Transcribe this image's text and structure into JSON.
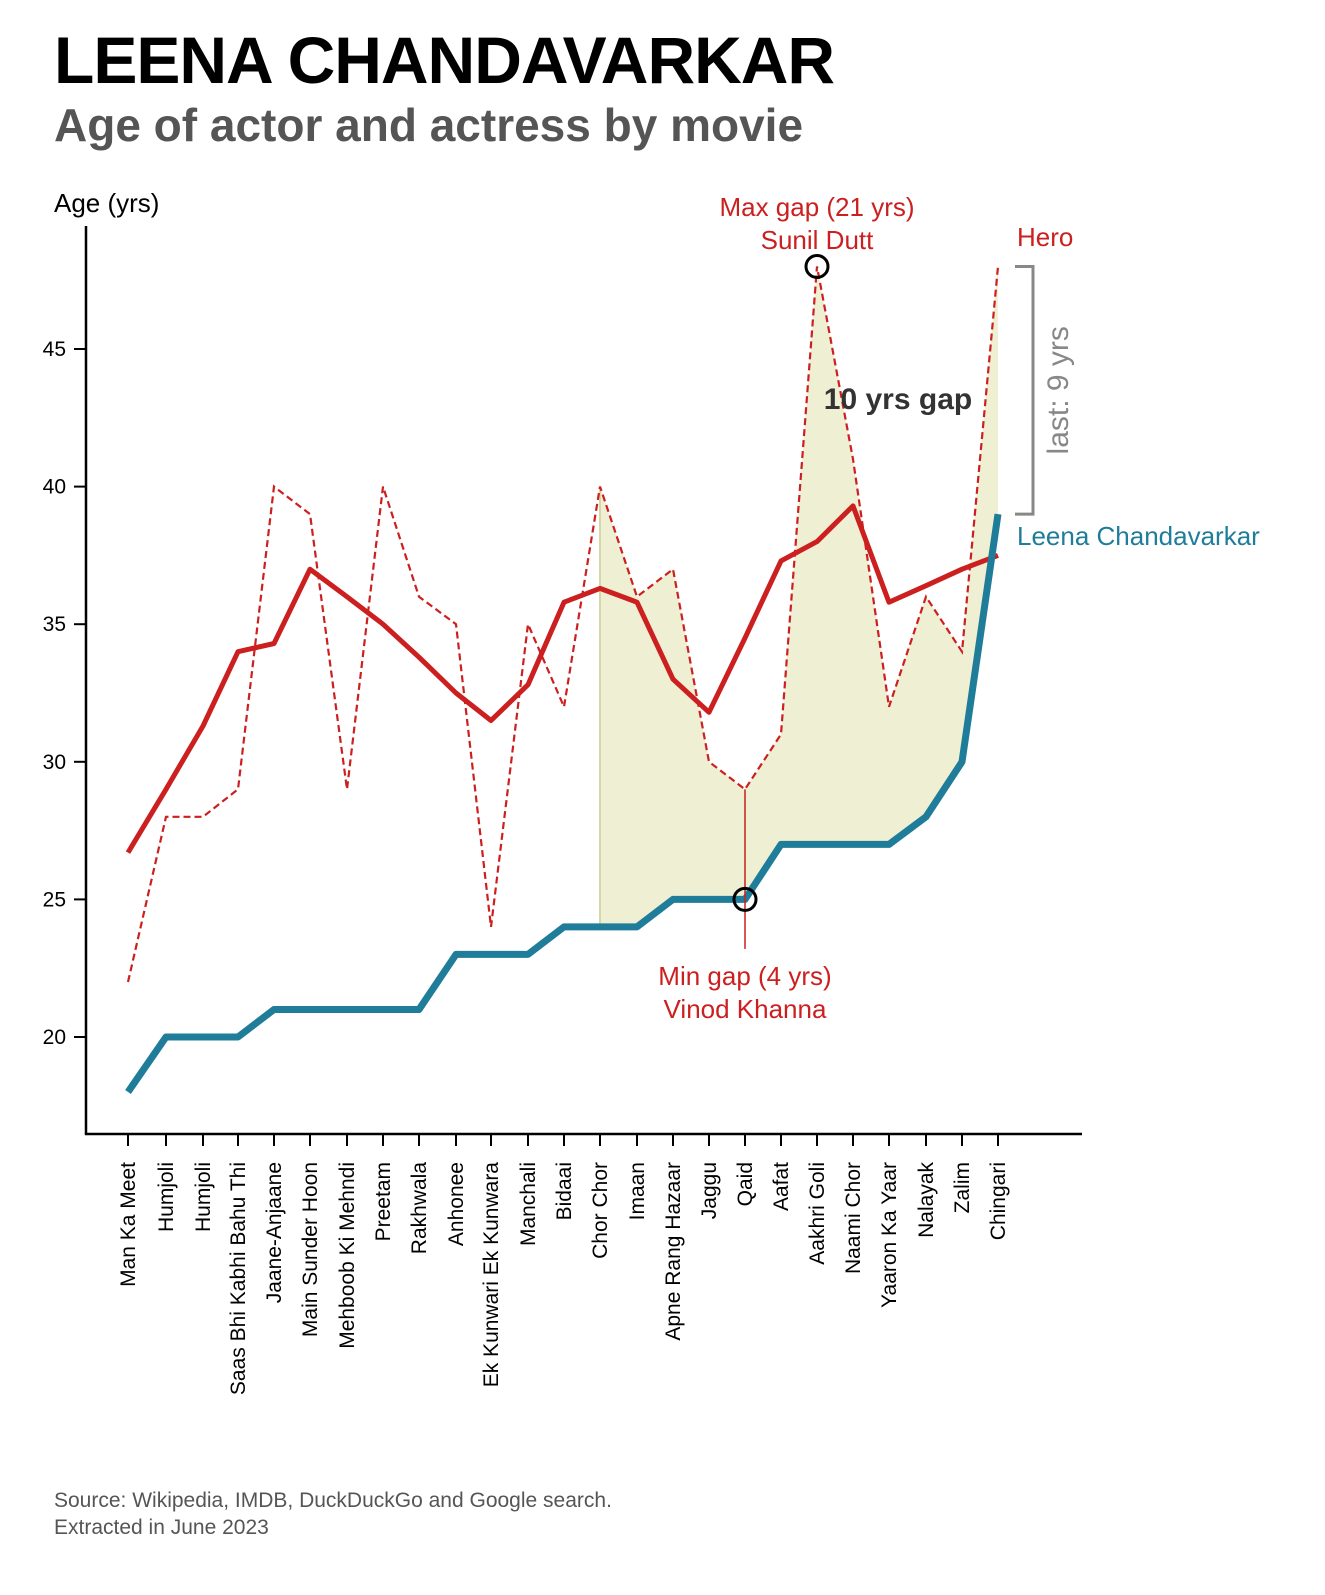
{
  "title": "LEENA CHANDAVARKAR",
  "subtitle": "Age of actor and actress by movie",
  "source_line1": "Source: Wikipedia, IMDB, DuckDuckGo and Google search.",
  "source_line2": "Extracted in June 2023",
  "colors": {
    "actress": "#1f7d9a",
    "actor": "#cc1f1f",
    "gap_fill": "#efefd3",
    "bracket": "#888888",
    "annotation_dark": "#333333"
  },
  "chart_data": {
    "type": "line",
    "ylabel": "Age (yrs)",
    "yticks": [
      20,
      25,
      30,
      35,
      40,
      45
    ],
    "ylim": [
      17.6,
      49.6
    ],
    "categories": [
      "Man Ka Meet",
      "Humjoli",
      "Humjoli",
      "Saas Bhi Kabhi Bahu Thi",
      "Jaane-Anjaane",
      "Main Sunder Hoon",
      "Mehboob Ki Mehndi",
      "Preetam",
      "Rakhwala",
      "Anhonee",
      "Ek Kunwari Ek Kunwara",
      "Manchali",
      "Bidaai",
      "Chor Chor",
      "Imaan",
      "Apne Rang Hazaar",
      "Jaggu",
      "Qaid",
      "Aafat",
      "Aakhri Goli",
      "Naami Chor",
      "Yaaron Ka Yaar",
      "Nalayak",
      "Zalim",
      "Chingari"
    ],
    "series": [
      {
        "name": "Leena Chandavarkar",
        "style": "solid-thick",
        "values": [
          18,
          20,
          20,
          20,
          21,
          21,
          21,
          21,
          21,
          23,
          23,
          23,
          24,
          24,
          24,
          25,
          25,
          25,
          27,
          27,
          27,
          27,
          28,
          30,
          39
        ]
      },
      {
        "name": "Hero",
        "style": "dashed",
        "values": [
          22,
          28,
          28,
          29,
          40,
          39,
          29,
          40,
          36,
          35,
          24,
          35,
          32,
          40,
          36,
          37,
          30,
          29,
          31,
          48,
          41,
          32,
          36,
          34,
          48
        ]
      },
      {
        "style": "solid-smoothed",
        "values": [
          26.7,
          29,
          31.3,
          34,
          34.3,
          37,
          36,
          35,
          33.8,
          32.5,
          31.5,
          32.8,
          35.8,
          36.3,
          35.8,
          33,
          31.8,
          34.5,
          37.3,
          38,
          39.3,
          35.8,
          36.4,
          37,
          37.5
        ]
      }
    ],
    "shaded_gap_from_index": 13,
    "annotations": {
      "max_gap_line1": "Max gap (21 yrs)",
      "max_gap_line2": "Sunil Dutt",
      "max_gap_index": 19,
      "max_gap_value": 48,
      "min_gap_line1": "Min gap (4 yrs)",
      "min_gap_line2": "Vinod Khanna",
      "min_gap_index": 17,
      "min_gap_value": 25,
      "avg_gap_label": "10 yrs gap",
      "last_gap_label": "last: 9 yrs",
      "hero_label": "Hero",
      "actress_label": "Leena Chandavarkar"
    }
  }
}
